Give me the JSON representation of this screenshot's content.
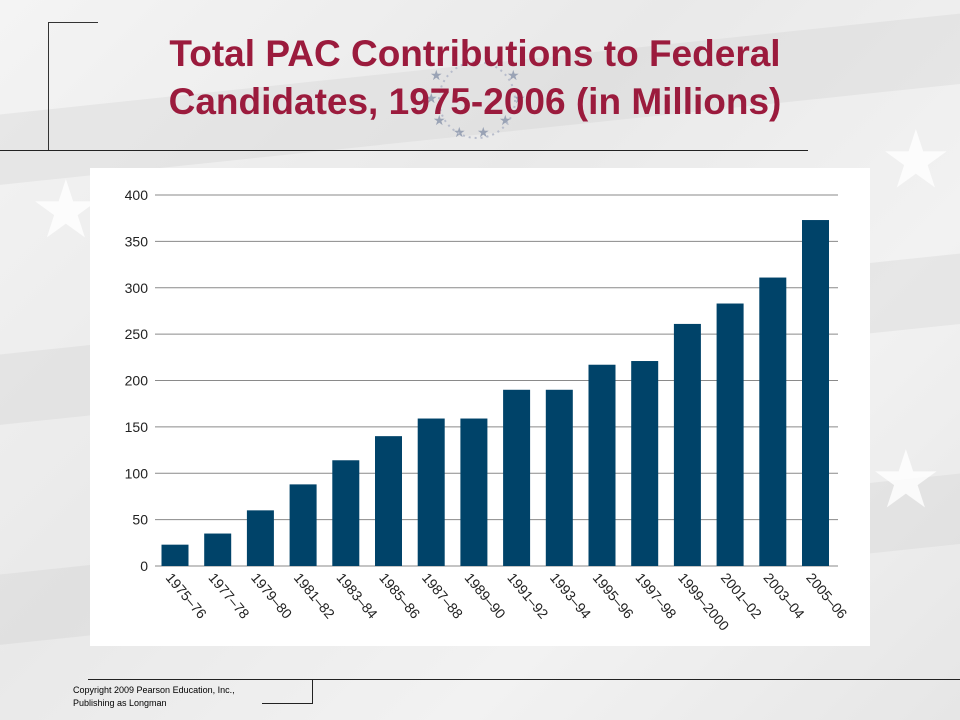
{
  "slide": {
    "title_line1": "Total PAC Contributions to Federal",
    "title_line2": "Candidates, 1975-2006 (in Millions)",
    "copyright": "Copyright 2009 Pearson Education, Inc.,\nPublishing as Longman"
  },
  "colors": {
    "title": "#9b1b3d",
    "bar": "#004369",
    "grid": "#8a8a8a"
  },
  "chart_data": {
    "type": "bar",
    "title": "",
    "xlabel": "",
    "ylabel": "",
    "ylim": [
      0,
      400
    ],
    "yticks": [
      0,
      50,
      100,
      150,
      200,
      250,
      300,
      350,
      400
    ],
    "grid": true,
    "categories": [
      "1975–76",
      "1977–78",
      "1979–80",
      "1981–82",
      "1983–84",
      "1985–86",
      "1987–88",
      "1989–90",
      "1991–92",
      "1993–94",
      "1995–96",
      "1997–98",
      "1999–2000",
      "2001–02",
      "2003–04",
      "2005–06"
    ],
    "values": [
      23,
      35,
      60,
      88,
      114,
      140,
      159,
      159,
      190,
      190,
      217,
      221,
      261,
      283,
      311,
      373
    ]
  }
}
